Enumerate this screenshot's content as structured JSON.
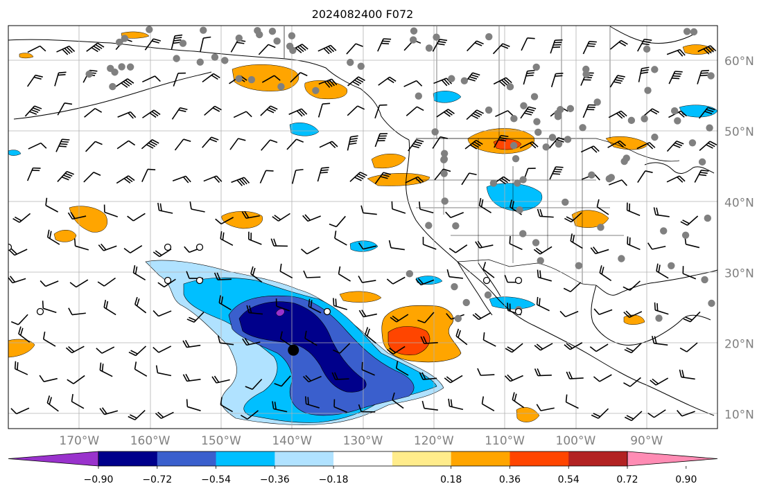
{
  "title": "2024082400 F072",
  "map": {
    "lon_range": [
      -180,
      -80
    ],
    "lat_range": [
      8,
      65
    ],
    "lon_ticks": [
      {
        "value": -170,
        "label": "170°W"
      },
      {
        "value": -160,
        "label": "160°W"
      },
      {
        "value": -150,
        "label": "150°W"
      },
      {
        "value": -140,
        "label": "140°W"
      },
      {
        "value": -130,
        "label": "130°W"
      },
      {
        "value": -120,
        "label": "120°W"
      },
      {
        "value": -110,
        "label": "110°W"
      },
      {
        "value": -100,
        "label": "100°W"
      },
      {
        "value": -90,
        "label": "90°W"
      }
    ],
    "lat_ticks": [
      {
        "value": 60,
        "label": "60°N"
      },
      {
        "value": 50,
        "label": "50°N"
      },
      {
        "value": 40,
        "label": "40°N"
      },
      {
        "value": 30,
        "label": "30°N"
      },
      {
        "value": 20,
        "label": "20°N"
      },
      {
        "value": 10,
        "label": "10°N"
      }
    ],
    "grid": true,
    "storm_marker": {
      "lon": -139.8,
      "lat": 19.1
    }
  },
  "colorbar": {
    "extend": "both",
    "colors": [
      "#9932cc",
      "#00008b",
      "#3a5fcd",
      "#00bfff",
      "#b0e2ff",
      "#ffffff",
      "#ffec8b",
      "#ffa500",
      "#ff4500",
      "#b22222",
      "#ff8cb4"
    ],
    "tick_labels": [
      "−0.90",
      "−0.72",
      "−0.54",
      "−0.36",
      "−0.18",
      "0.18",
      "0.36",
      "0.54",
      "0.72",
      "0.90"
    ]
  },
  "colors": {
    "grid": "#b0b0b0",
    "axis_labels": "#808080",
    "station": "#808080"
  }
}
